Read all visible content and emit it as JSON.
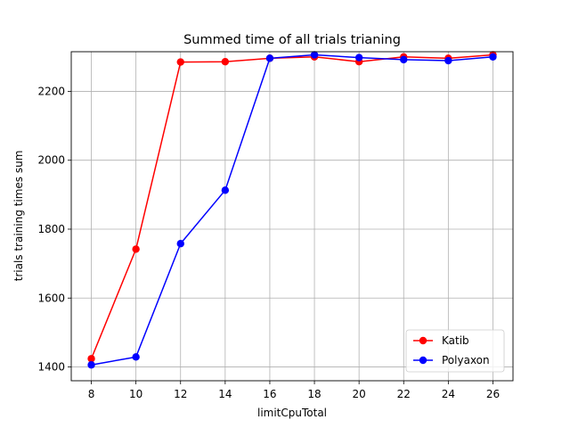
{
  "chart_data": {
    "type": "line",
    "title": "Summed time of all trials trianing",
    "xlabel": "limitCpuTotal",
    "ylabel": "trials training times sum",
    "x": [
      8,
      10,
      12,
      14,
      16,
      18,
      20,
      22,
      24,
      26
    ],
    "xticks": [
      "8",
      "10",
      "12",
      "14",
      "16",
      "18",
      "20",
      "22",
      "24",
      "26"
    ],
    "yticks": [
      "1400",
      "1600",
      "1800",
      "2000",
      "2200"
    ],
    "xlim": [
      7.1,
      26.9
    ],
    "ylim": [
      1360,
      2315
    ],
    "grid": true,
    "legend_position": "lower-right",
    "series": [
      {
        "name": "Katib",
        "color": "#ff0000",
        "marker": "circle",
        "values": [
          1424,
          1742,
          2285,
          2286,
          2296,
          2300,
          2286,
          2300,
          2296,
          2306
        ]
      },
      {
        "name": "Polyaxon",
        "color": "#0000ff",
        "marker": "circle",
        "values": [
          1406,
          1429,
          1758,
          1913,
          2296,
          2306,
          2298,
          2292,
          2289,
          2300
        ]
      }
    ]
  }
}
